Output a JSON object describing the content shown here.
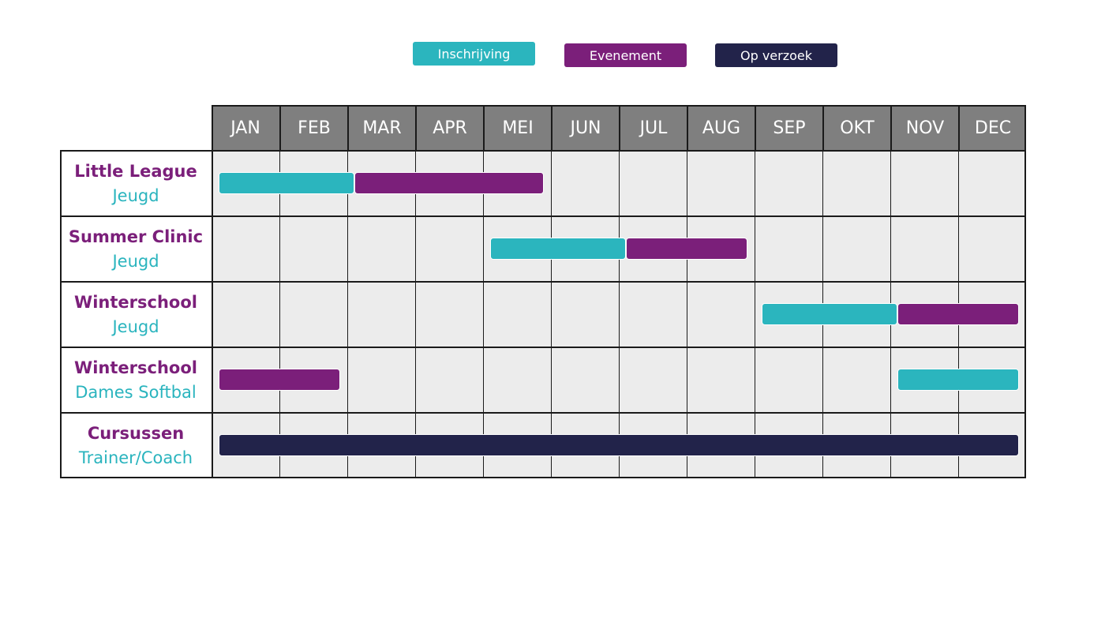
{
  "colors": {
    "inschrijving": "#2bb5be",
    "evenement": "#7b1f7a",
    "op_verzoek": "#22234a",
    "header": "#7f7f7f",
    "cell": "#ececec"
  },
  "legend": [
    {
      "key": "inschrijving",
      "label": "Inschrijving"
    },
    {
      "key": "evenement",
      "label": "Evenement"
    },
    {
      "key": "op_verzoek",
      "label": "Op verzoek"
    }
  ],
  "chart_data": {
    "type": "table",
    "months": [
      "JAN",
      "FEB",
      "MAR",
      "APR",
      "MEI",
      "JUN",
      "JUL",
      "AUG",
      "SEP",
      "OKT",
      "NOV",
      "DEC"
    ],
    "rows": [
      {
        "title": "Little League",
        "subtitle": "Jeugd",
        "bars": [
          {
            "type": "inschrijving",
            "start": 0.1,
            "end": 2.1
          },
          {
            "type": "evenement",
            "start": 2.1,
            "end": 4.9
          }
        ]
      },
      {
        "title": "Summer Clinic",
        "subtitle": "Jeugd",
        "bars": [
          {
            "type": "inschrijving",
            "start": 4.1,
            "end": 6.1
          },
          {
            "type": "evenement",
            "start": 6.1,
            "end": 7.9
          }
        ]
      },
      {
        "title": "Winterschool",
        "subtitle": "Jeugd",
        "bars": [
          {
            "type": "inschrijving",
            "start": 8.1,
            "end": 10.1
          },
          {
            "type": "evenement",
            "start": 10.1,
            "end": 11.9
          }
        ]
      },
      {
        "title": "Winterschool",
        "subtitle": "Dames Softbal",
        "bars": [
          {
            "type": "evenement",
            "start": 0.1,
            "end": 1.9
          },
          {
            "type": "inschrijving",
            "start": 10.1,
            "end": 11.9
          }
        ]
      },
      {
        "title": "Cursussen",
        "subtitle": "Trainer/Coach",
        "bars": [
          {
            "type": "op_verzoek",
            "start": 0.1,
            "end": 11.9
          }
        ]
      }
    ]
  }
}
